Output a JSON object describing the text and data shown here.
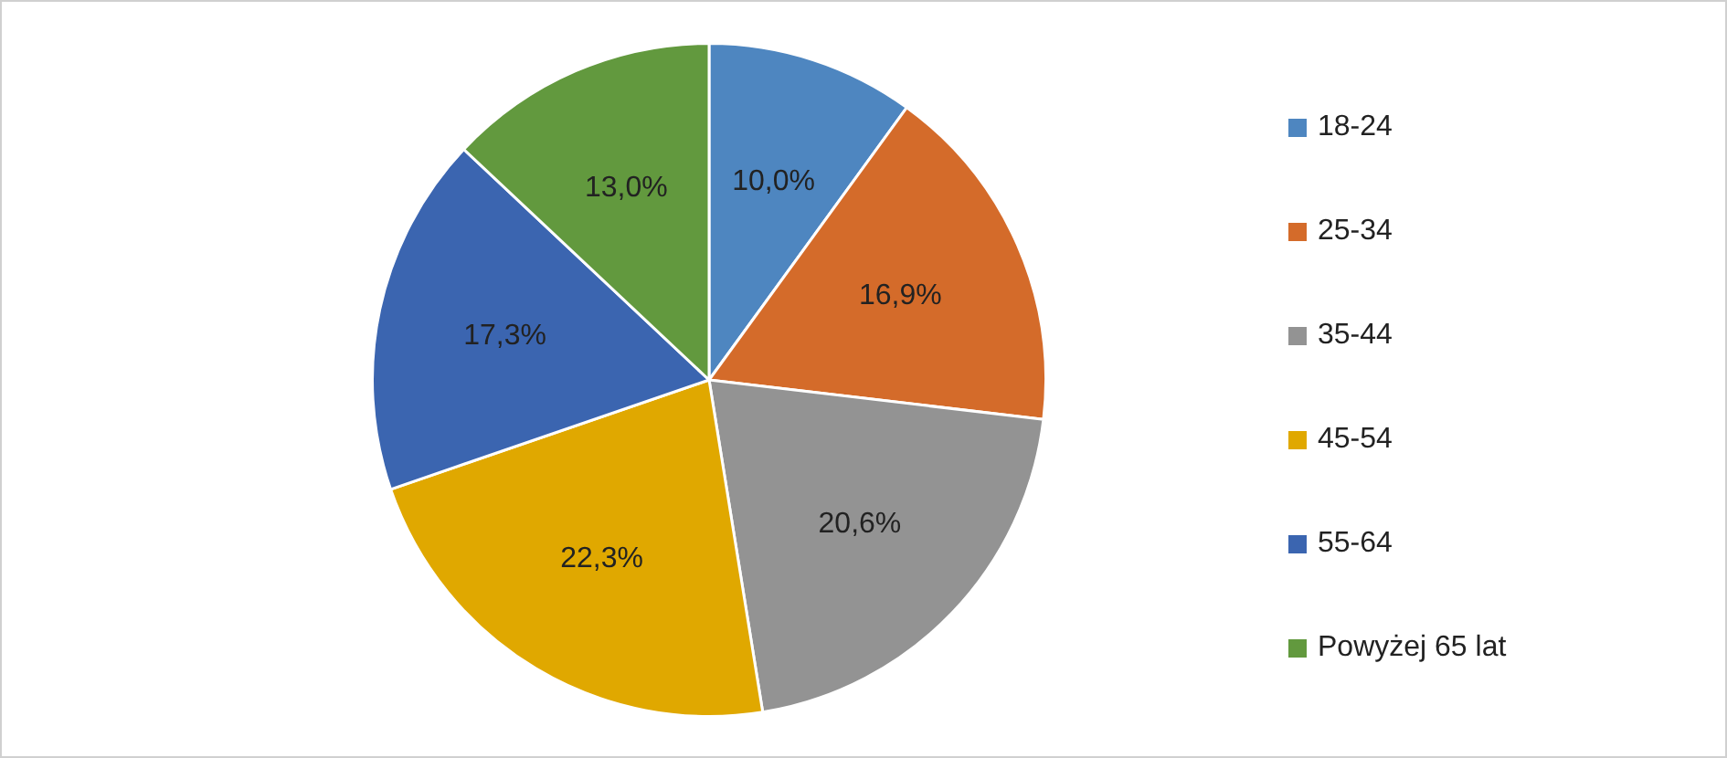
{
  "chart_data": {
    "type": "pie",
    "categories": [
      "18-24",
      "25-34",
      "35-44",
      "45-54",
      "55-64",
      "Powyżej 65 lat"
    ],
    "values": [
      10.0,
      16.9,
      20.6,
      22.3,
      17.3,
      13.0
    ],
    "value_labels": [
      "10,0%",
      "16,9%",
      "20,6%",
      "22,3%",
      "17,3%",
      "13,0%"
    ],
    "colors": [
      "#4e86c0",
      "#d46b2a",
      "#939393",
      "#e0a800",
      "#3b65b0",
      "#62993e"
    ],
    "legend": "right"
  }
}
